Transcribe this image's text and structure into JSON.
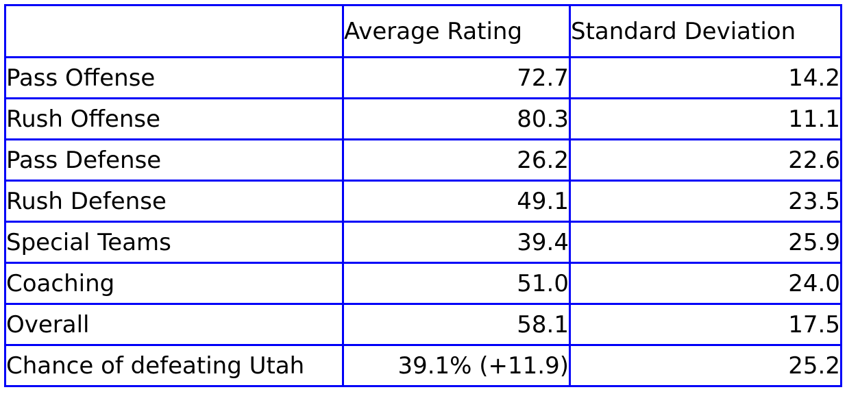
{
  "chart_data": {
    "type": "table",
    "columns": [
      "",
      "Average Rating",
      "Standard Deviation"
    ],
    "rows": [
      [
        "Pass Offense",
        72.7,
        14.2
      ],
      [
        "Rush Offense",
        80.3,
        11.1
      ],
      [
        "Pass Defense",
        26.2,
        22.6
      ],
      [
        "Rush Defense",
        49.1,
        23.5
      ],
      [
        "Special Teams",
        39.4,
        25.9
      ],
      [
        "Coaching",
        51.0,
        24.0
      ],
      [
        "Overall",
        58.1,
        17.5
      ],
      [
        "Chance of defeating Utah",
        "39.1% (+11.9)",
        25.2
      ]
    ],
    "layout_hints": {
      "grid": "on",
      "header_alignment": "left",
      "value_alignment": "right"
    }
  },
  "table": {
    "header": {
      "col1": "",
      "col2": "Average Rating",
      "col3": "Standard Deviation"
    },
    "rows": [
      {
        "label": "Pass Offense",
        "avg": "72.7",
        "sd": "14.2"
      },
      {
        "label": "Rush Offense",
        "avg": "80.3",
        "sd": "11.1"
      },
      {
        "label": "Pass Defense",
        "avg": "26.2",
        "sd": "22.6"
      },
      {
        "label": "Rush Defense",
        "avg": "49.1",
        "sd": "23.5"
      },
      {
        "label": "Special Teams",
        "avg": "39.4",
        "sd": "25.9"
      },
      {
        "label": "Coaching",
        "avg": "51.0",
        "sd": "24.0"
      },
      {
        "label": "Overall",
        "avg": "58.1",
        "sd": "17.5"
      },
      {
        "label": "Chance of defeating Utah",
        "avg": "39.1% (+11.9)",
        "sd": "25.2"
      }
    ]
  },
  "colors": {
    "border": "#0000f8",
    "text": "#000000",
    "background": "#ffffff"
  }
}
